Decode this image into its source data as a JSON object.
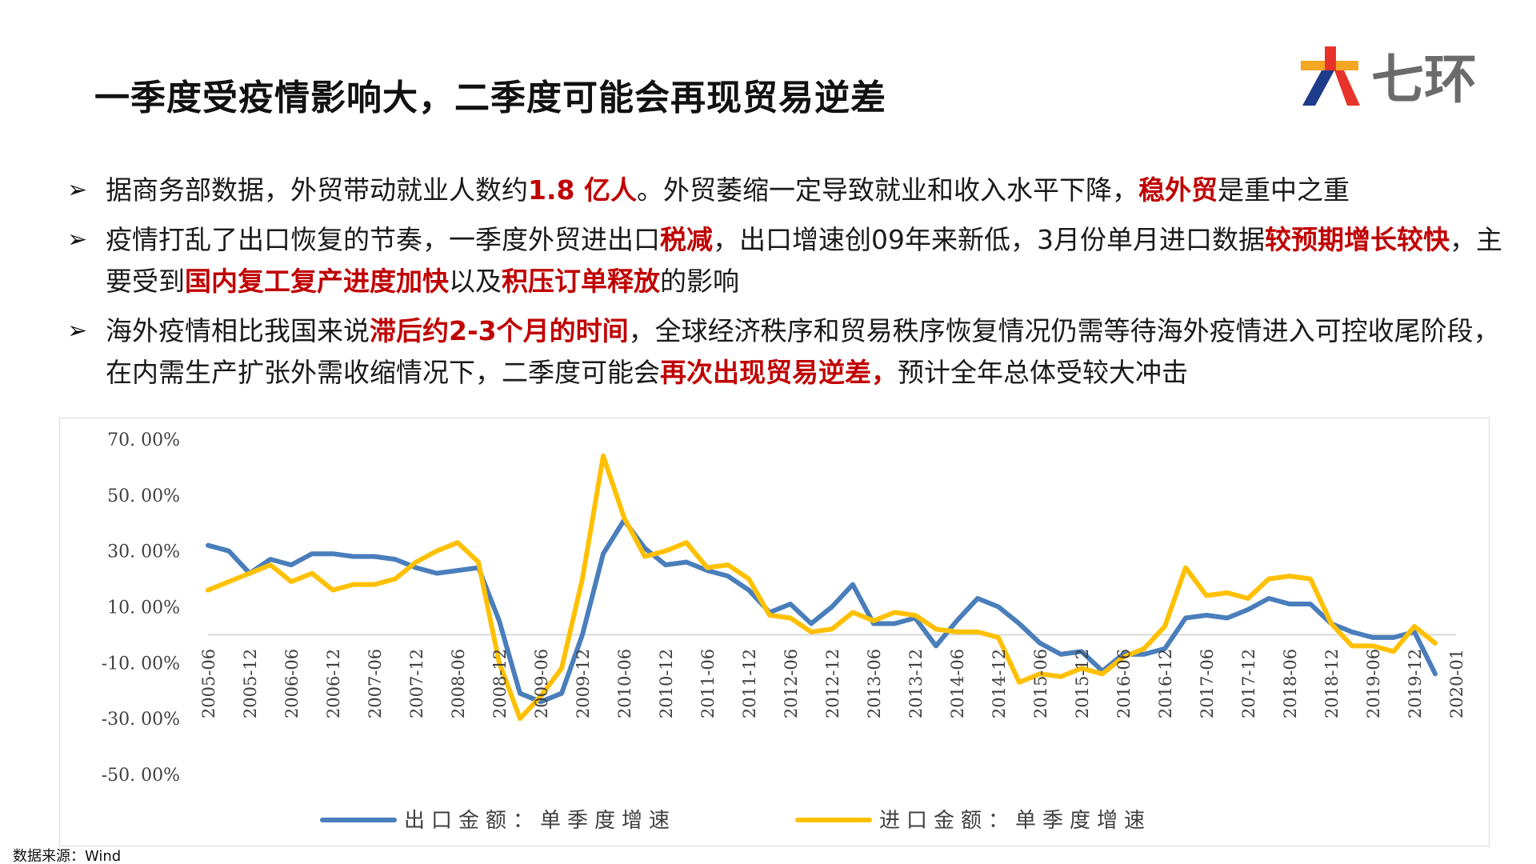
{
  "title": "一季度受疫情影响大，二季度可能会再现贸易逆差",
  "logo": {
    "text": "七环",
    "colors": {
      "red": "#e8332a",
      "orange": "#f5a623",
      "blue": "#1f3b8c",
      "gray": "#6b6b6b"
    }
  },
  "bullets": [
    {
      "segments": [
        {
          "text": "据商务部数据，外贸带动就业人数约",
          "red": false
        },
        {
          "text": "1.8 亿人",
          "red": true
        },
        {
          "text": "。外贸萎缩一定导致就业和收入水平下降，",
          "red": false
        },
        {
          "text": "稳外贸",
          "red": true
        },
        {
          "text": "是重中之重",
          "red": false
        }
      ]
    },
    {
      "segments": [
        {
          "text": "疫情打乱了出口恢复的节奏，一季度外贸进出口",
          "red": false
        },
        {
          "text": "税减",
          "red": true
        },
        {
          "text": "，出口增速创09年来新低，3月份单月进口数据",
          "red": false
        },
        {
          "text": "较预期增长较快",
          "red": true
        },
        {
          "text": "，主要受到",
          "red": false
        },
        {
          "text": "国内复工复产进度加快",
          "red": true
        },
        {
          "text": "以及",
          "red": false
        },
        {
          "text": "积压订单释放",
          "red": true
        },
        {
          "text": "的影响",
          "red": false
        }
      ]
    },
    {
      "segments": [
        {
          "text": "海外疫情相比我国来说",
          "red": false
        },
        {
          "text": "滞后约2-3个月的时间",
          "red": true
        },
        {
          "text": "，全球经济秩序和贸易秩序恢复情况仍需等待海外疫情进入可控收尾阶段，在内需生产扩张外需收缩情况下，二季度可能会",
          "red": false
        },
        {
          "text": "再次出现贸易逆差，",
          "red": true
        },
        {
          "text": "预计全年总体受较大冲击",
          "red": false
        }
      ]
    }
  ],
  "source": "数据来源：Wind",
  "colors": {
    "red_text": "#c00000",
    "export": "#4a7ebb",
    "import": "#ffc000"
  },
  "chart_data": {
    "type": "line",
    "y_ticks": [
      "70. 00%",
      "50. 00%",
      "30. 00%",
      "10. 00%",
      "-10. 00%",
      "-30. 00%",
      "-50. 00%"
    ],
    "ylim": [
      -50,
      70
    ],
    "x_labels": [
      "2005-06",
      "2005-12",
      "2006-06",
      "2006-12",
      "2007-06",
      "2007-12",
      "2008-06",
      "2008-12",
      "2009-06",
      "2009-12",
      "2010-06",
      "2010-12",
      "2011-06",
      "2011-12",
      "2012-06",
      "2012-12",
      "2013-06",
      "2013-12",
      "2014-06",
      "2014-12",
      "2015-06",
      "2015-12",
      "2016-06",
      "2016-12",
      "2017-06",
      "2017-12",
      "2018-06",
      "2018-12",
      "2019-06",
      "2019-12",
      "2020-01"
    ],
    "legend": [
      "出口金额：单季度增速",
      "进口金额：单季度增速"
    ],
    "legend_position": "bottom",
    "series": [
      {
        "name": "出口金额：单季度增速",
        "color": "#4a7ebb",
        "points": [
          [
            0,
            32
          ],
          [
            0.5,
            30
          ],
          [
            1,
            22
          ],
          [
            1.5,
            27
          ],
          [
            2,
            25
          ],
          [
            2.5,
            29
          ],
          [
            3,
            29
          ],
          [
            3.5,
            28
          ],
          [
            4,
            28
          ],
          [
            4.5,
            27
          ],
          [
            5,
            24
          ],
          [
            5.5,
            22
          ],
          [
            6,
            23
          ],
          [
            6.5,
            24
          ],
          [
            7,
            5
          ],
          [
            7.5,
            -21
          ],
          [
            8,
            -24
          ],
          [
            8.5,
            -21
          ],
          [
            9,
            0
          ],
          [
            9.5,
            29
          ],
          [
            10,
            41
          ],
          [
            10.5,
            31
          ],
          [
            11,
            25
          ],
          [
            11.5,
            26
          ],
          [
            12,
            23
          ],
          [
            12.5,
            21
          ],
          [
            13,
            16
          ],
          [
            13.5,
            8
          ],
          [
            14,
            11
          ],
          [
            14.5,
            4
          ],
          [
            15,
            10
          ],
          [
            15.5,
            18
          ],
          [
            16,
            4
          ],
          [
            16.5,
            4
          ],
          [
            17,
            6
          ],
          [
            17.5,
            -4
          ],
          [
            18,
            5
          ],
          [
            18.5,
            13
          ],
          [
            19,
            10
          ],
          [
            19.5,
            4
          ],
          [
            20,
            -3
          ],
          [
            20.5,
            -7
          ],
          [
            21,
            -6
          ],
          [
            21.5,
            -13
          ],
          [
            22,
            -7
          ],
          [
            22.5,
            -7
          ],
          [
            23,
            -5
          ],
          [
            23.5,
            6
          ],
          [
            24,
            7
          ],
          [
            24.5,
            6
          ],
          [
            25,
            9
          ],
          [
            25.5,
            13
          ],
          [
            26,
            11
          ],
          [
            26.5,
            11
          ],
          [
            27,
            4
          ],
          [
            27.5,
            1
          ],
          [
            28,
            -1
          ],
          [
            28.5,
            -1
          ],
          [
            29,
            1
          ],
          [
            29.5,
            -14
          ]
        ]
      },
      {
        "name": "进口金额：单季度增速",
        "color": "#ffc000",
        "points": [
          [
            0,
            16
          ],
          [
            0.5,
            19
          ],
          [
            1,
            22
          ],
          [
            1.5,
            25
          ],
          [
            2,
            19
          ],
          [
            2.5,
            22
          ],
          [
            3,
            16
          ],
          [
            3.5,
            18
          ],
          [
            4,
            18
          ],
          [
            4.5,
            20
          ],
          [
            5,
            26
          ],
          [
            5.5,
            30
          ],
          [
            6,
            33
          ],
          [
            6.5,
            26
          ],
          [
            7,
            -10
          ],
          [
            7.5,
            -30
          ],
          [
            8,
            -22
          ],
          [
            8.5,
            -12
          ],
          [
            9,
            20
          ],
          [
            9.5,
            64
          ],
          [
            10,
            42
          ],
          [
            10.5,
            28
          ],
          [
            11,
            30
          ],
          [
            11.5,
            33
          ],
          [
            12,
            24
          ],
          [
            12.5,
            25
          ],
          [
            13,
            20
          ],
          [
            13.5,
            7
          ],
          [
            14,
            6
          ],
          [
            14.5,
            1
          ],
          [
            15,
            2
          ],
          [
            15.5,
            8
          ],
          [
            16,
            5
          ],
          [
            16.5,
            8
          ],
          [
            17,
            7
          ],
          [
            17.5,
            2
          ],
          [
            18,
            1
          ],
          [
            18.5,
            1
          ],
          [
            19,
            -1
          ],
          [
            19.5,
            -17
          ],
          [
            20,
            -14
          ],
          [
            20.5,
            -15
          ],
          [
            21,
            -12
          ],
          [
            21.5,
            -14
          ],
          [
            22,
            -8
          ],
          [
            22.5,
            -5
          ],
          [
            23,
            3
          ],
          [
            23.5,
            24
          ],
          [
            24,
            14
          ],
          [
            24.5,
            15
          ],
          [
            25,
            13
          ],
          [
            25.5,
            20
          ],
          [
            26,
            21
          ],
          [
            26.5,
            20
          ],
          [
            27,
            4
          ],
          [
            27.5,
            -4
          ],
          [
            28,
            -4
          ],
          [
            28.5,
            -6
          ],
          [
            29,
            3
          ],
          [
            29.5,
            -3
          ]
        ]
      }
    ]
  }
}
